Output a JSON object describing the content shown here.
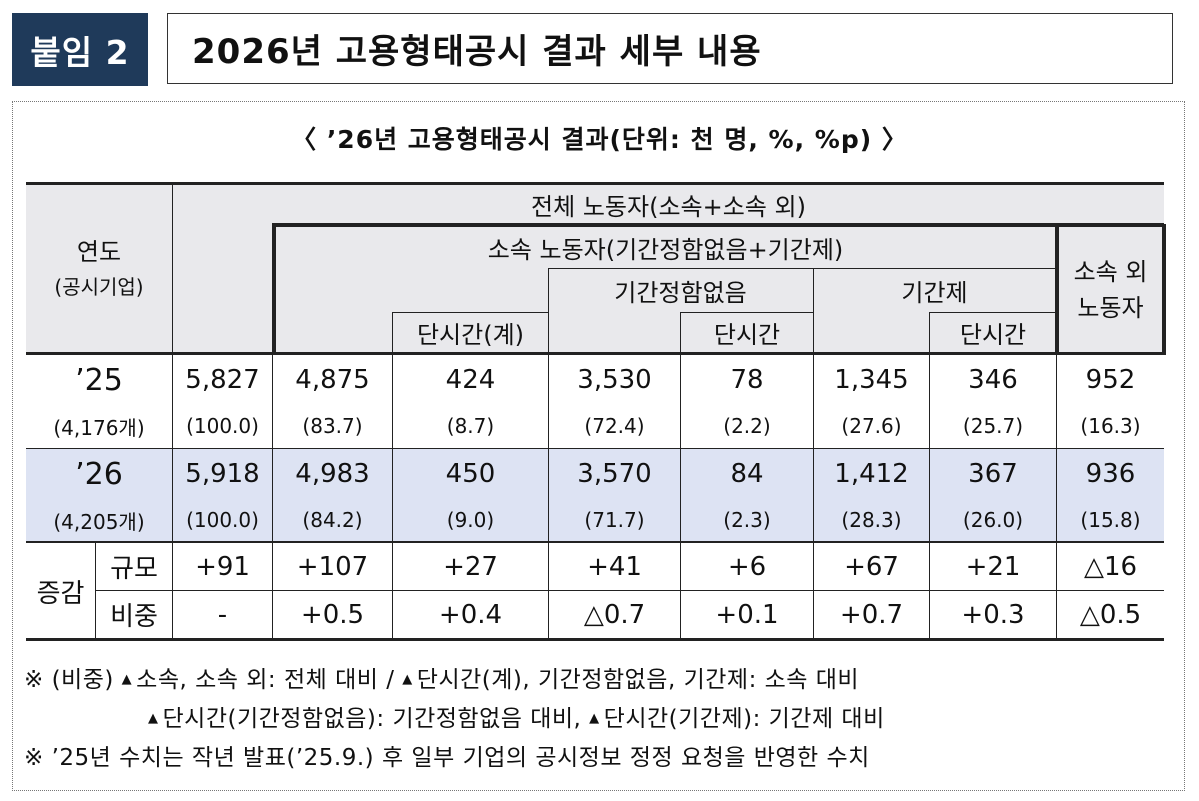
{
  "header": {
    "badge": "붙임 2",
    "title": "2026년 고용형태공시 결과 세부 내용"
  },
  "table_title": "〈 ’26년 고용형태공시 결과(단위: 천 명, %, %p) 〉",
  "columns": {
    "year": "연도",
    "year_sub": "(공시기업)",
    "total": "전체 노동자(소속+소속 외)",
    "affiliated": "소속 노동자(기간정함없음+기간제)",
    "indefinite": "기간정함없음",
    "fixed_term": "기간제",
    "non_affiliated": "소속 외\n노동자",
    "part_time_total": "단시간(계)",
    "part_time_indefinite": "단시간",
    "part_time_fixed": "단시간"
  },
  "rows": [
    {
      "year": "’25",
      "firms": "(4,176개)",
      "values": [
        "5,827",
        "4,875",
        "424",
        "3,530",
        "78",
        "1,345",
        "346",
        "952"
      ],
      "shares": [
        "(100.0)",
        "(83.7)",
        "(8.7)",
        "(72.4)",
        "(2.2)",
        "(27.6)",
        "(25.7)",
        "(16.3)"
      ]
    },
    {
      "year": "’26",
      "firms": "(4,205개)",
      "values": [
        "5,918",
        "4,983",
        "450",
        "3,570",
        "84",
        "1,412",
        "367",
        "936"
      ],
      "shares": [
        "(100.0)",
        "(84.2)",
        "(9.0)",
        "(71.7)",
        "(2.3)",
        "(28.3)",
        "(26.0)",
        "(15.8)"
      ]
    }
  ],
  "change": {
    "label": "증감",
    "scale_label": "규모",
    "scale": [
      "+91",
      "+107",
      "+27",
      "+41",
      "+6",
      "+67",
      "+21",
      "△16"
    ],
    "ratio_label": "비중",
    "ratio": [
      "-",
      "+0.5",
      "+0.4",
      "△0.7",
      "+0.1",
      "+0.7",
      "+0.3",
      "△0.5"
    ]
  },
  "notes": {
    "line1_a": "※ (비중) ",
    "line1_b": "소속, 소속 외: 전체 대비 / ",
    "line1_c": "단시간(계), 기간정함없음, 기간제: 소속 대비",
    "line2_a": "단시간(기간정함없음): 기간정함없음 대비, ",
    "line2_b": "단시간(기간제): 기간제 대비",
    "line3": "※ ’25년 수치는 작년 발표(’25.9.) 후 일부 기업의 공시정보 정정 요청을 반영한 수치"
  },
  "colors": {
    "badge": "#1f3a5a",
    "header_bg": "#e9e9ec",
    "highlight_row": "#dde3f3"
  }
}
